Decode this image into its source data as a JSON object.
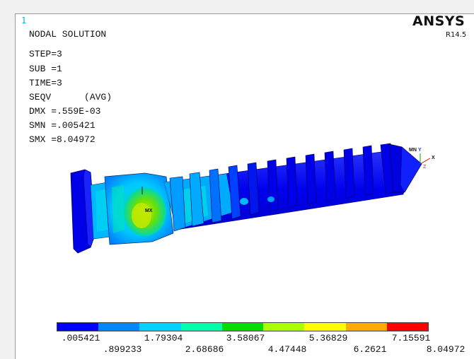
{
  "window": {
    "number": "1",
    "logo": "ANSYS",
    "version": "R14.5"
  },
  "info": {
    "lines": [
      "NODAL SOLUTION",
      "STEP=3",
      "SUB =1",
      "TIME=3",
      "SEQV      (AVG)",
      "DMX =.559E-03",
      "SMN =.005421",
      "SMX =8.04972"
    ]
  },
  "markers": {
    "mx": "MX",
    "mn": "MN",
    "y": "Y",
    "x": "X",
    "z": "Z"
  },
  "legend": {
    "colors": [
      "#0000ff",
      "#0088ff",
      "#00d4ff",
      "#00ffaa",
      "#00dd00",
      "#aaff00",
      "#ffff00",
      "#ffaa00",
      "#ff0000"
    ],
    "top_labels": [
      ".005421",
      "1.79304",
      "3.58067",
      "5.36829",
      "7.15591"
    ],
    "bottom_labels": [
      ".899233",
      "2.68686",
      "4.47448",
      "6.2621",
      "8.04972"
    ]
  }
}
